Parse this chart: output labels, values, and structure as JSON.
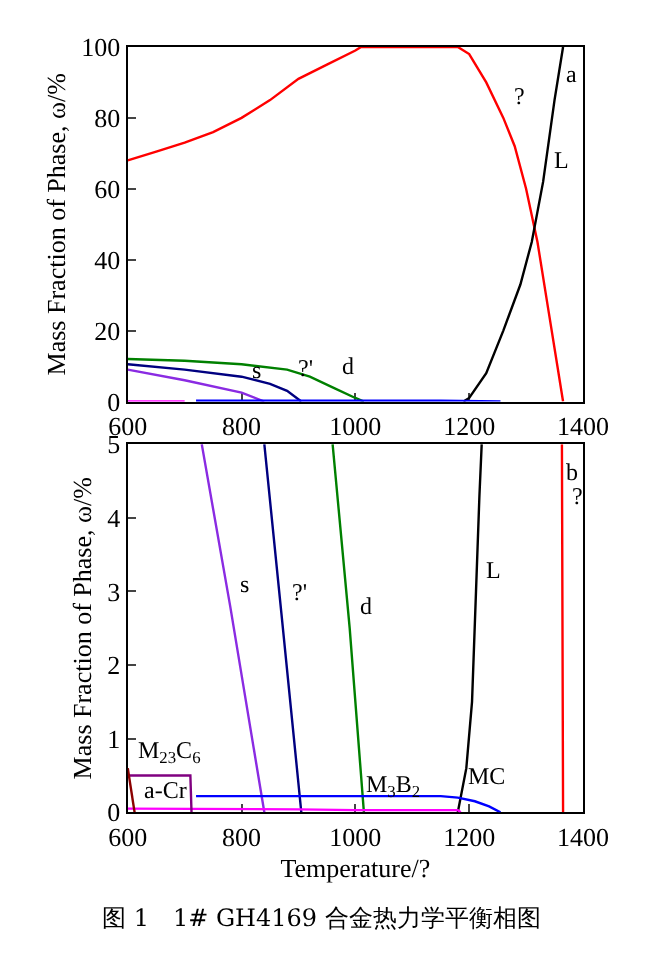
{
  "chart_data": [
    {
      "type": "line",
      "ylabel": "Mass Fraction of Phase, ω/%",
      "xlim": [
        600,
        1400
      ],
      "xticks": [
        600,
        800,
        1000,
        1200,
        1400
      ],
      "ylim": [
        0,
        100
      ],
      "yticks": [
        0,
        20,
        40,
        60,
        80,
        100
      ],
      "marker": "none",
      "line_style": "solid",
      "series": [
        {
          "color": "#ff0000",
          "x": [
            600,
            650,
            700,
            750,
            800,
            850,
            900,
            950,
            1000,
            1010,
            1180,
            1200,
            1230,
            1260,
            1280,
            1300,
            1320,
            1340,
            1355,
            1365
          ],
          "values": [
            68,
            70.5,
            73,
            76,
            80,
            85,
            91,
            95,
            99,
            100,
            100,
            98,
            90,
            80,
            72,
            60,
            45,
            25,
            10,
            0
          ]
        },
        {
          "color": "#000000",
          "x": [
            1190,
            1200,
            1230,
            1260,
            1290,
            1310,
            1330,
            1350,
            1365
          ],
          "values": [
            0,
            1,
            8,
            20,
            33,
            45,
            62,
            85,
            100
          ]
        },
        {
          "color": "#008000",
          "x": [
            600,
            700,
            800,
            880,
            920,
            960,
            1000,
            1015
          ],
          "values": [
            12,
            11.5,
            10.5,
            9,
            7,
            4,
            1,
            0
          ]
        },
        {
          "color": "#000080",
          "x": [
            600,
            700,
            800,
            850,
            880,
            905
          ],
          "values": [
            10.5,
            9,
            7,
            5,
            3,
            0
          ]
        },
        {
          "color": "#8a2be2",
          "x": [
            600,
            700,
            800,
            840
          ],
          "values": [
            9,
            6,
            2.5,
            0
          ]
        },
        {
          "color": "#0000ff",
          "x": [
            720,
            1150,
            1255
          ],
          "values": [
            0.2,
            0.2,
            0
          ]
        },
        {
          "color": "#ff00ff",
          "x": [
            600,
            700
          ],
          "values": [
            0,
            0
          ]
        }
      ],
      "annotations": [
        "a",
        {
          "text": "?",
          "x": 1260,
          "y": 80
        },
        {
          "text": "L",
          "x": 1330,
          "y": 62
        },
        {
          "text": "d",
          "x": 960,
          "y": 4
        },
        {
          "text": "?'",
          "x": 880,
          "y": 3
        },
        {
          "text": "s",
          "x": 800,
          "y": 2.5
        }
      ]
    },
    {
      "type": "line",
      "xlabel": "Temperature/?",
      "ylabel": "Mass Fraction of Phase, ω/%",
      "xlim": [
        600,
        1400
      ],
      "xticks": [
        600,
        800,
        1000,
        1200,
        1400
      ],
      "ylim": [
        0,
        5
      ],
      "yticks": [
        0,
        1,
        2,
        3,
        4,
        5
      ],
      "marker": "none",
      "line_style": "solid",
      "series": [
        {
          "color": "#8a2be2",
          "x": [
            730,
            780,
            840
          ],
          "values": [
            5,
            2.8,
            0
          ]
        },
        {
          "color": "#000080",
          "x": [
            840,
            870,
            905
          ],
          "values": [
            5,
            2.7,
            0
          ]
        },
        {
          "color": "#008000",
          "x": [
            960,
            990,
            1015
          ],
          "values": [
            5,
            2.5,
            0
          ]
        },
        {
          "color": "#000000",
          "x": [
            1180,
            1195,
            1205,
            1212,
            1218,
            1222
          ],
          "values": [
            0,
            0.6,
            1.5,
            3,
            4.3,
            5
          ]
        },
        {
          "color": "#ff0000",
          "x": [
            1363,
            1363.4,
            1365
          ],
          "values": [
            5,
            4,
            0
          ]
        },
        {
          "color": "#0000ff",
          "x": [
            720,
            1150,
            1180,
            1210,
            1235,
            1255
          ],
          "values": [
            0.22,
            0.22,
            0.2,
            0.15,
            0.08,
            0
          ]
        },
        {
          "color": "#ff00ff",
          "x": [
            600,
            900,
            1000,
            1180,
            1185
          ],
          "values": [
            0.05,
            0.04,
            0.03,
            0.03,
            0
          ]
        },
        {
          "color": "#800080",
          "x": [
            600,
            710,
            712
          ],
          "values": [
            0.5,
            0.5,
            0
          ]
        },
        {
          "color": "#8b0000",
          "x": [
            600,
            612
          ],
          "values": [
            0.6,
            0
          ]
        }
      ],
      "annotations": [
        "b",
        "图 1　1# GH4169 合金热力学平衡相图",
        {
          "text": "?",
          "x": 1363.4,
          "y": 4
        },
        {
          "text": "L",
          "x": 1212,
          "y": 3
        },
        {
          "text": "d",
          "x": 990,
          "y": 2.5
        },
        {
          "text": "?'",
          "x": 870,
          "y": 2.7
        },
        {
          "text": "s",
          "x": 780,
          "y": 2.8
        },
        {
          "text": "M$_{23}$C$_{6}$",
          "x": 600,
          "y": 0.5
        },
        {
          "text": "a-Cr",
          "x": 612,
          "y": 0
        },
        {
          "text": "M$_{3}$B$_{2}$",
          "x": 1000,
          "y": 0.03
        },
        {
          "text": "MC",
          "x": 1180,
          "y": 0.2
        }
      ]
    }
  ]
}
